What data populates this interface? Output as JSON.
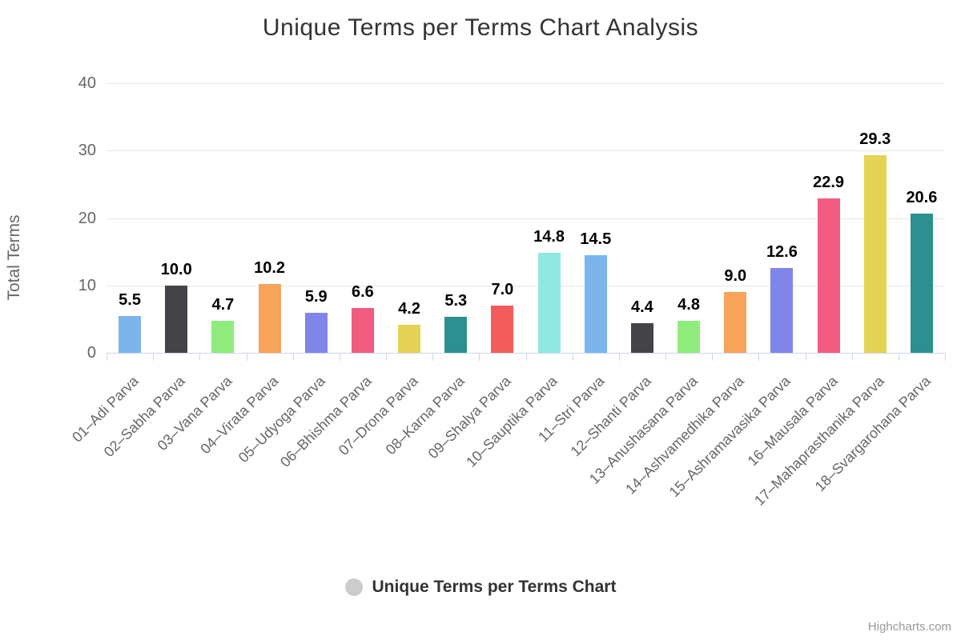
{
  "title": "Unique Terms per Terms Chart Analysis",
  "legend": {
    "label": "Unique Terms per Terms Chart"
  },
  "credits": {
    "label": "Highcharts.com"
  },
  "y_axis": {
    "title": "Total Terms"
  },
  "colors": {
    "title_text": "#333333",
    "axis_text": "#666666",
    "data_label_text": "#000000",
    "gridline": "#e6e6e6",
    "axis_line": "#ccd6eb",
    "legend_marker": "#cccccc",
    "credits_text": "#999999"
  },
  "chart_data": {
    "type": "bar",
    "title": "Unique Terms per Terms Chart Analysis",
    "series_name": "Unique Terms per Terms Chart",
    "categories": [
      "01–Adi Parva",
      "02–Sabha Parva",
      "03–Vana Parva",
      "04–Virata Parva",
      "05–Udyoga Parva",
      "06–Bhishma Parva",
      "07–Drona Parva",
      "08–Karna Parva",
      "09–Shalya Parva",
      "10–Sauptika Parva",
      "11–Stri Parva",
      "12–Shanti Parva",
      "13–Anushasana Parva",
      "14–Ashvamedhika Parva",
      "15–Ashramavasika Parva",
      "16–Mausala Parva",
      "17–Mahaprasthanika Parva",
      "18–Svargarohana Parva"
    ],
    "values": [
      5.5,
      10.0,
      4.7,
      10.2,
      5.9,
      6.6,
      4.2,
      5.3,
      7.0,
      14.8,
      14.5,
      4.4,
      4.8,
      9.0,
      12.6,
      22.9,
      29.3,
      20.6
    ],
    "xlabel": "",
    "ylabel": "Total Terms",
    "ylim": [
      0,
      40
    ],
    "yticks": [
      0,
      10,
      20,
      30,
      40
    ],
    "grid": true,
    "legend_position": "bottom",
    "bar_colors": [
      "#7cb5ec",
      "#434348",
      "#90ed7d",
      "#f7a35c",
      "#8085e9",
      "#f15c80",
      "#e4d354",
      "#2b908f",
      "#f45b5b",
      "#91e8e1"
    ]
  }
}
